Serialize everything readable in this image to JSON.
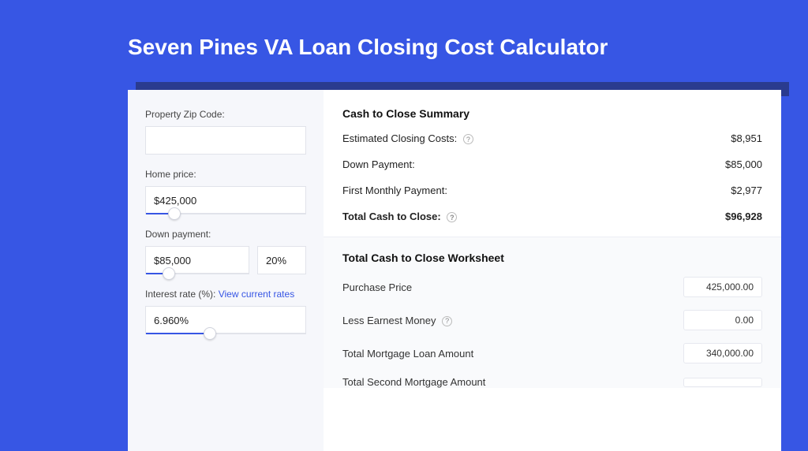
{
  "colors": {
    "page_bg": "#3756e4",
    "shadow": "#2a3b8f",
    "card_bg": "#ffffff",
    "left_bg": "#f6f7fb",
    "border": "#e1e3ea",
    "accent": "#3756e4",
    "text": "#222222"
  },
  "title": "Seven Pines VA Loan Closing Cost Calculator",
  "form": {
    "zip": {
      "label": "Property Zip Code:",
      "value": ""
    },
    "home_price": {
      "label": "Home price:",
      "value": "$425,000",
      "slider_pct": 18
    },
    "down_payment": {
      "label": "Down payment:",
      "value": "$85,000",
      "pct": "20%",
      "slider_pct": 22
    },
    "interest": {
      "label_prefix": "Interest rate (%): ",
      "link_text": "View current rates",
      "value": "6.960%",
      "slider_pct": 40
    }
  },
  "summary": {
    "title": "Cash to Close Summary",
    "rows": [
      {
        "label": "Estimated Closing Costs:",
        "help": true,
        "value": "$8,951",
        "bold": false
      },
      {
        "label": "Down Payment:",
        "help": false,
        "value": "$85,000",
        "bold": false
      },
      {
        "label": "First Monthly Payment:",
        "help": false,
        "value": "$2,977",
        "bold": false
      },
      {
        "label": "Total Cash to Close:",
        "help": true,
        "value": "$96,928",
        "bold": true
      }
    ]
  },
  "worksheet": {
    "title": "Total Cash to Close Worksheet",
    "rows": [
      {
        "label": "Purchase Price",
        "help": false,
        "value": "425,000.00"
      },
      {
        "label": "Less Earnest Money",
        "help": true,
        "value": "0.00"
      },
      {
        "label": "Total Mortgage Loan Amount",
        "help": false,
        "value": "340,000.00"
      },
      {
        "label": "Total Second Mortgage Amount",
        "help": false,
        "value": ""
      }
    ]
  }
}
